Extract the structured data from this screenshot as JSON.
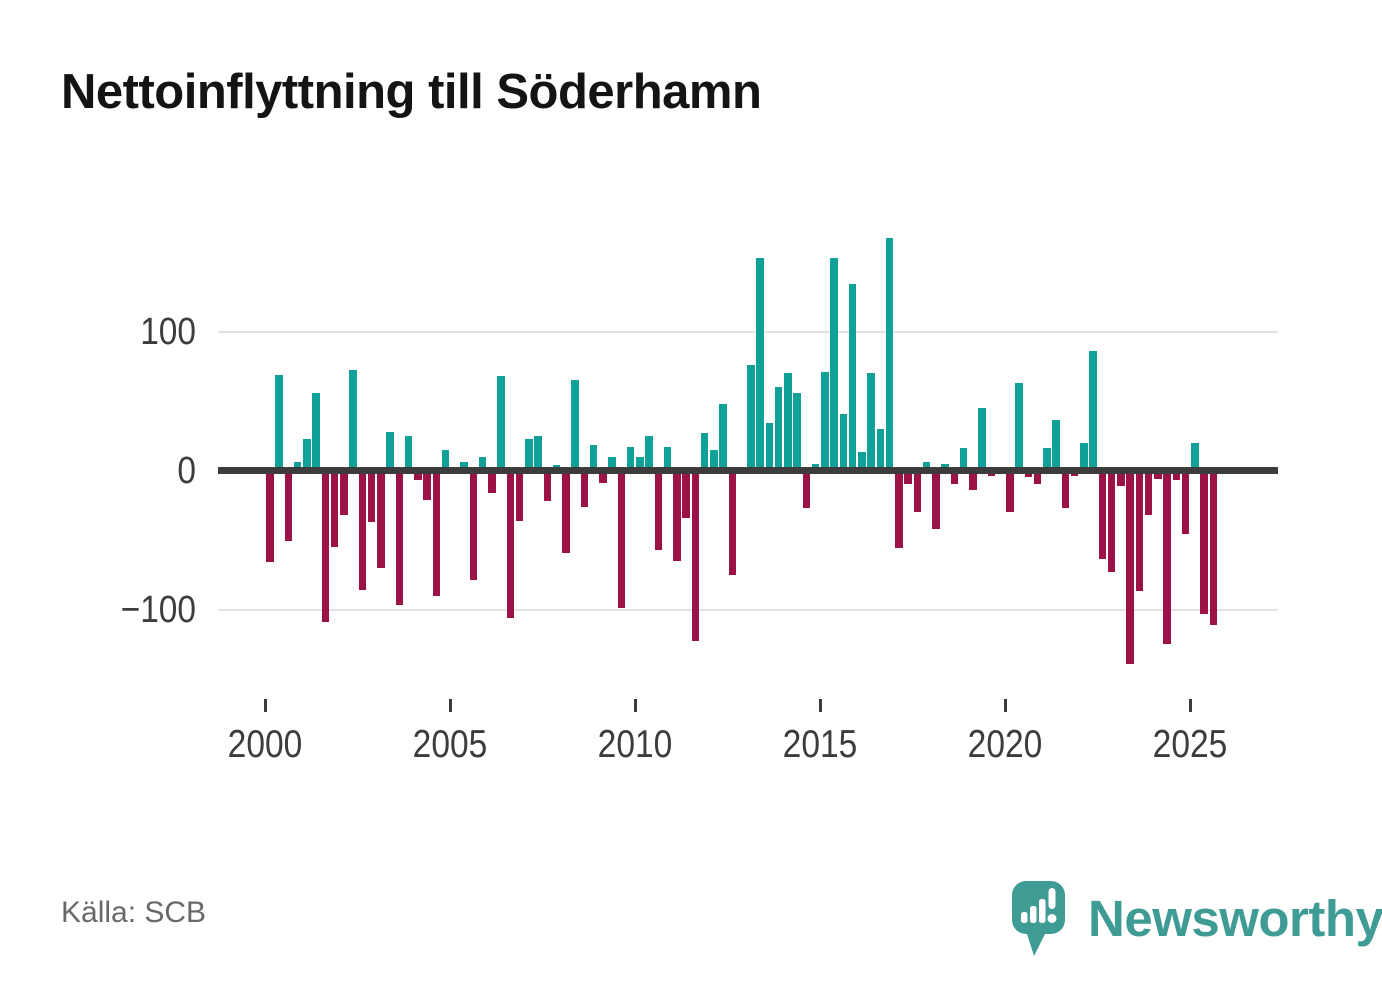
{
  "title": "Nettoinflyttning till Söderhamn",
  "source": "Källa: SCB",
  "logo": {
    "text": "Newsworthy"
  },
  "colors": {
    "positive_bar": "#11a098",
    "negative_bar": "#9c1247",
    "axis": "#3c3c3c",
    "gridline": "#e3e3e3",
    "title_text": "#141414",
    "tick_text": "#3d3d3d",
    "source_text": "#686868",
    "logo_teal": "#3f9c95"
  },
  "y_axis": {
    "ticks": [
      {
        "label": "100",
        "value": 100
      },
      {
        "label": "0",
        "value": 0
      },
      {
        "label": "−100",
        "value": -100
      }
    ]
  },
  "x_axis": {
    "ticks": [
      "2000",
      "2005",
      "2010",
      "2015",
      "2020",
      "2025"
    ]
  },
  "chart_data": {
    "type": "bar",
    "title": "Nettoinflyttning till Söderhamn",
    "x_unit": "quarter",
    "start_quarter": "2000 Q1",
    "end_quarter": "2025 Q3",
    "ylim": [
      -150,
      175
    ],
    "gridlines": [
      -100,
      0,
      100
    ],
    "grid": true,
    "legend": "none",
    "quarters": [
      "2000 Q1",
      "2000 Q2",
      "2000 Q3",
      "2000 Q4",
      "2001 Q1",
      "2001 Q2",
      "2001 Q3",
      "2001 Q4",
      "2002 Q1",
      "2002 Q2",
      "2002 Q3",
      "2002 Q4",
      "2003 Q1",
      "2003 Q2",
      "2003 Q3",
      "2003 Q4",
      "2004 Q1",
      "2004 Q2",
      "2004 Q3",
      "2004 Q4",
      "2005 Q1",
      "2005 Q2",
      "2005 Q3",
      "2005 Q4",
      "2006 Q1",
      "2006 Q2",
      "2006 Q3",
      "2006 Q4",
      "2007 Q1",
      "2007 Q2",
      "2007 Q3",
      "2007 Q4",
      "2008 Q1",
      "2008 Q2",
      "2008 Q3",
      "2008 Q4",
      "2009 Q1",
      "2009 Q2",
      "2009 Q3",
      "2009 Q4",
      "2010 Q1",
      "2010 Q2",
      "2010 Q3",
      "2010 Q4",
      "2011 Q1",
      "2011 Q2",
      "2011 Q3",
      "2011 Q4",
      "2012 Q1",
      "2012 Q2",
      "2012 Q3",
      "2012 Q4",
      "2013 Q1",
      "2013 Q2",
      "2013 Q3",
      "2013 Q4",
      "2014 Q1",
      "2014 Q2",
      "2014 Q3",
      "2014 Q4",
      "2015 Q1",
      "2015 Q2",
      "2015 Q3",
      "2015 Q4",
      "2016 Q1",
      "2016 Q2",
      "2016 Q3",
      "2016 Q4",
      "2017 Q1",
      "2017 Q2",
      "2017 Q3",
      "2017 Q4",
      "2018 Q1",
      "2018 Q2",
      "2018 Q3",
      "2018 Q4",
      "2019 Q1",
      "2019 Q2",
      "2019 Q3",
      "2019 Q4",
      "2020 Q1",
      "2020 Q2",
      "2020 Q3",
      "2020 Q4",
      "2021 Q1",
      "2021 Q2",
      "2021 Q3",
      "2021 Q4",
      "2022 Q1",
      "2022 Q2",
      "2022 Q3",
      "2022 Q4",
      "2023 Q1",
      "2023 Q2",
      "2023 Q3",
      "2023 Q4",
      "2024 Q1",
      "2024 Q2",
      "2024 Q3",
      "2024 Q4",
      "2025 Q1",
      "2025 Q2",
      "2025 Q3"
    ],
    "values": [
      -66,
      69,
      -51,
      6,
      23,
      56,
      -109,
      -55,
      -32,
      72,
      -86,
      -37,
      -70,
      28,
      -97,
      25,
      -7,
      -21,
      -90,
      15,
      0,
      6,
      -79,
      10,
      -16,
      68,
      -106,
      -36,
      23,
      25,
      -22,
      4,
      -59,
      65,
      -26,
      18,
      -9,
      10,
      -99,
      17,
      10,
      25,
      -57,
      17,
      -65,
      -34,
      -123,
      27,
      15,
      48,
      -75,
      0,
      76,
      153,
      34,
      60,
      70,
      56,
      -27,
      5,
      71,
      153,
      41,
      134,
      13,
      70,
      30,
      167,
      -56,
      -10,
      -30,
      6,
      -42,
      5,
      -10,
      16,
      -14,
      45,
      -4,
      0,
      -30,
      63,
      -5,
      -10,
      16,
      36,
      -27,
      -4,
      20,
      86,
      -64,
      -73,
      -11,
      -139,
      -87,
      -32,
      -6,
      -125,
      -7,
      -46,
      20,
      -103,
      -111
    ]
  }
}
